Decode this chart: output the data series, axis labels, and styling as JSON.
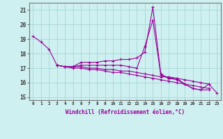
{
  "x": [
    0,
    1,
    2,
    3,
    4,
    5,
    6,
    7,
    8,
    9,
    10,
    11,
    12,
    13,
    14,
    15,
    16,
    17,
    18,
    19,
    20,
    21,
    22,
    23
  ],
  "line1": [
    19.2,
    18.8,
    18.3,
    17.2,
    17.1,
    17.1,
    17.4,
    17.4,
    17.4,
    17.5,
    17.5,
    17.6,
    17.6,
    17.7,
    18.1,
    21.2,
    16.6,
    16.3,
    16.3,
    15.9,
    15.6,
    15.5,
    15.9,
    15.3
  ],
  "line2": [
    null,
    null,
    null,
    17.2,
    17.1,
    17.1,
    17.2,
    17.2,
    17.2,
    17.2,
    17.2,
    17.2,
    17.1,
    17.0,
    18.5,
    20.3,
    16.5,
    16.3,
    16.2,
    15.9,
    15.6,
    15.5,
    15.5,
    null
  ],
  "line3": [
    null,
    null,
    null,
    17.2,
    17.1,
    17.1,
    17.1,
    17.0,
    17.0,
    16.9,
    16.9,
    16.8,
    16.8,
    16.7,
    16.6,
    16.5,
    16.4,
    16.4,
    16.3,
    16.2,
    16.1,
    16.0,
    15.9,
    null
  ],
  "line4": [
    null,
    null,
    null,
    17.2,
    17.1,
    17.0,
    17.0,
    16.9,
    16.9,
    16.8,
    16.7,
    16.7,
    16.6,
    16.5,
    16.4,
    16.3,
    16.2,
    16.1,
    16.0,
    15.9,
    15.8,
    15.7,
    15.6,
    null
  ],
  "color": "#990099",
  "bg_color": "#cff0f0",
  "grid_color": "#aadada",
  "xlabel": "Windchill (Refroidissement éolien,°C)",
  "ylabel_ticks": [
    15,
    16,
    17,
    18,
    19,
    20,
    21
  ],
  "xlim": [
    -0.5,
    23.5
  ],
  "ylim": [
    14.8,
    21.5
  ],
  "marker": "+",
  "markersize": 3,
  "linewidth": 0.8
}
